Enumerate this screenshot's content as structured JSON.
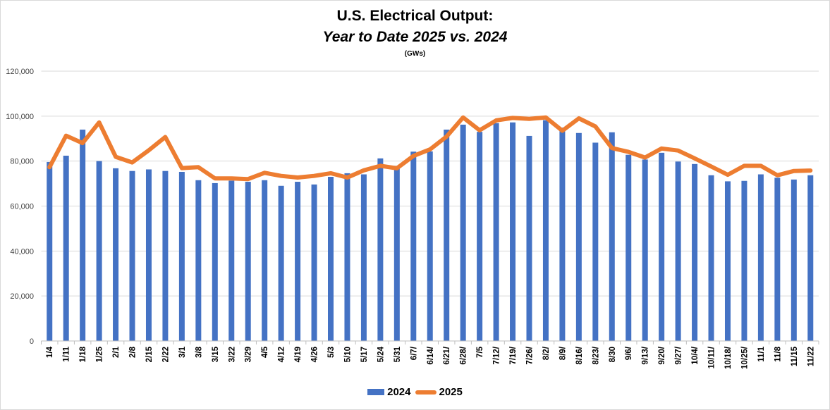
{
  "chart_data": {
    "type": "bar+line",
    "title": "U.S. Electrical Output:",
    "subtitle": "Year to Date 2025 vs. 2024",
    "units": "(GWs)",
    "xlabel": "",
    "ylabel": "",
    "ylim": [
      0,
      120000
    ],
    "yticks": [
      0,
      20000,
      40000,
      60000,
      80000,
      100000,
      120000
    ],
    "ytick_labels": [
      "0",
      "20,000",
      "40,000",
      "60,000",
      "80,000",
      "100,000",
      "120,000"
    ],
    "grid": true,
    "legend_position": "bottom",
    "categories": [
      "1/4",
      "1/11",
      "1/18",
      "1/25",
      "2/1",
      "2/8",
      "2/15",
      "2/22",
      "3/1",
      "3/8",
      "3/15",
      "3/22",
      "3/29",
      "4/5",
      "4/12",
      "4/19",
      "4/26",
      "5/3",
      "5/10",
      "5/17",
      "5/24",
      "5/31",
      "6/7/",
      "6/14/",
      "6/21/",
      "6/28/",
      "7/5",
      "7/12/",
      "7/19/",
      "7/26/",
      "8/2/",
      "8/9/",
      "8/16/",
      "8/23/",
      "8/30",
      "9/6/",
      "9/13/",
      "9/20/",
      "9/27/",
      "10/4/",
      "10/11/",
      "10/18/",
      "10/25/",
      "11/1",
      "11/8",
      "11/15",
      "11/22"
    ],
    "series": [
      {
        "name": "2024",
        "kind": "bar",
        "color": "#4472c4",
        "values": [
          79600,
          82400,
          94000,
          80000,
          76800,
          75600,
          76300,
          75600,
          75200,
          71500,
          70200,
          71300,
          70800,
          71500,
          69000,
          70800,
          69600,
          73000,
          74600,
          74100,
          81200,
          77900,
          84200,
          84300,
          94000,
          96200,
          93000,
          96900,
          97200,
          91200,
          98200,
          94900,
          92500,
          88200,
          92800,
          82800,
          80700,
          83700,
          79800,
          78700,
          73700,
          71000,
          71200,
          74100,
          72600,
          71800,
          73700
        ]
      },
      {
        "name": "2025",
        "kind": "line",
        "color": "#ed7d31",
        "values": [
          77300,
          91300,
          88000,
          97200,
          81900,
          79400,
          84800,
          90700,
          76900,
          77300,
          72300,
          72300,
          72000,
          74800,
          73400,
          72700,
          73400,
          74600,
          72700,
          75900,
          77900,
          76800,
          82300,
          85200,
          90900,
          99400,
          93700,
          98100,
          99200,
          98800,
          99400,
          93500,
          99000,
          95400,
          85800,
          84100,
          81600,
          85600,
          84700,
          81200,
          77600,
          73900,
          77900,
          77900,
          73700,
          75600,
          75800
        ]
      }
    ]
  }
}
